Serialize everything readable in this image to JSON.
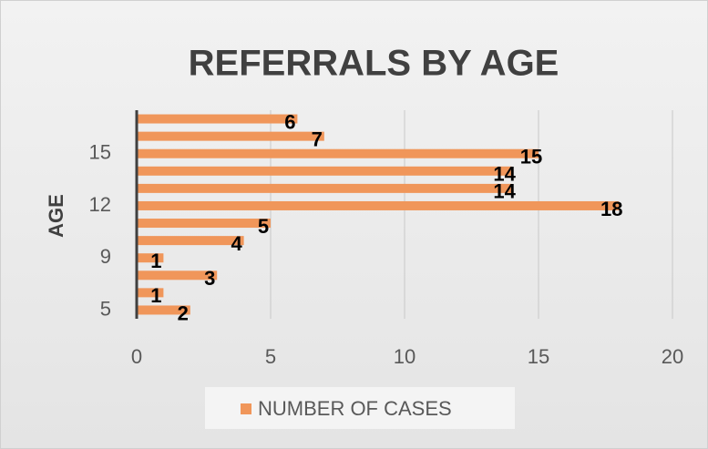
{
  "chart_data": {
    "type": "bar",
    "orientation": "horizontal",
    "title": "REFERRALS BY AGE",
    "y_label": "AGE",
    "categories": [
      "5",
      null,
      null,
      "9",
      null,
      null,
      "12",
      null,
      null,
      "15",
      null,
      null
    ],
    "series": [
      {
        "name": "NUMBER OF CASES",
        "color": "#f0965a",
        "values": [
          2,
          1,
          3,
          1,
          4,
          5,
          18,
          14,
          14,
          15,
          7,
          6
        ]
      }
    ],
    "xlim": [
      0,
      20
    ],
    "xticks": [
      0,
      5,
      10,
      15,
      20
    ],
    "grid": true,
    "legend": "bottom"
  }
}
